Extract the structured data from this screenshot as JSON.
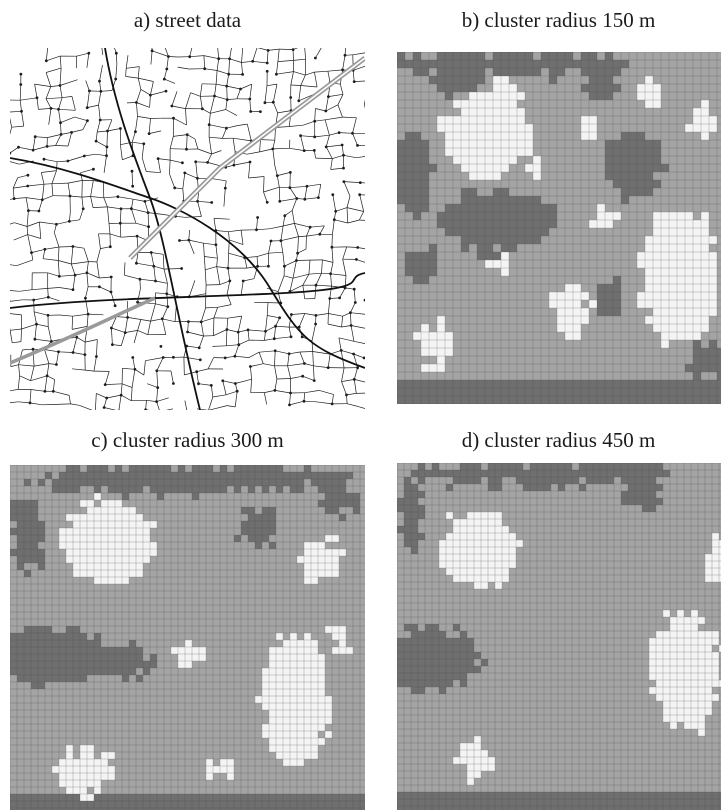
{
  "panels": [
    {
      "id": "a",
      "caption": "a) street data",
      "kind": "street-network"
    },
    {
      "id": "b",
      "caption": "b) cluster radius 150 m",
      "kind": "cluster-grid",
      "radius_m": 150
    },
    {
      "id": "c",
      "caption": "c) cluster radius 300 m",
      "kind": "cluster-grid",
      "radius_m": 300
    },
    {
      "id": "d",
      "caption": "d) cluster radius 450 m",
      "kind": "cluster-grid",
      "radius_m": 450
    }
  ],
  "colors": {
    "dense_cluster": "#f4f4f4",
    "medium": "#a4a4a4",
    "sparse": "#6f6f6f",
    "grid_line": "#4a4a4a",
    "street_line": "#1e1e1e",
    "highway": "#9a9a9a",
    "background": "#ffffff"
  }
}
